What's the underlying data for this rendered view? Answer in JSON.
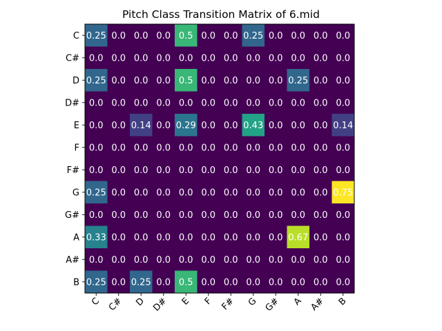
{
  "chart_data": {
    "type": "heatmap",
    "title": "Pitch Class Transition Matrix of 6.mid",
    "xlabel": "",
    "ylabel": "",
    "x_categories": [
      "C",
      "C#",
      "D",
      "D#",
      "E",
      "F",
      "F#",
      "G",
      "G#",
      "A",
      "A#",
      "B"
    ],
    "y_categories": [
      "C",
      "C#",
      "D",
      "D#",
      "E",
      "F",
      "F#",
      "G",
      "G#",
      "A",
      "A#",
      "B"
    ],
    "x_tick_rotation_deg": 45,
    "colormap": "viridis",
    "value_range": [
      0,
      0.75
    ],
    "grid": false,
    "values": [
      [
        0.25,
        0.0,
        0.0,
        0.0,
        0.5,
        0.0,
        0.0,
        0.25,
        0.0,
        0.0,
        0.0,
        0.0
      ],
      [
        0.0,
        0.0,
        0.0,
        0.0,
        0.0,
        0.0,
        0.0,
        0.0,
        0.0,
        0.0,
        0.0,
        0.0
      ],
      [
        0.25,
        0.0,
        0.0,
        0.0,
        0.5,
        0.0,
        0.0,
        0.0,
        0.0,
        0.25,
        0.0,
        0.0
      ],
      [
        0.0,
        0.0,
        0.0,
        0.0,
        0.0,
        0.0,
        0.0,
        0.0,
        0.0,
        0.0,
        0.0,
        0.0
      ],
      [
        0.0,
        0.0,
        0.14,
        0.0,
        0.29,
        0.0,
        0.0,
        0.43,
        0.0,
        0.0,
        0.0,
        0.14
      ],
      [
        0.0,
        0.0,
        0.0,
        0.0,
        0.0,
        0.0,
        0.0,
        0.0,
        0.0,
        0.0,
        0.0,
        0.0
      ],
      [
        0.0,
        0.0,
        0.0,
        0.0,
        0.0,
        0.0,
        0.0,
        0.0,
        0.0,
        0.0,
        0.0,
        0.0
      ],
      [
        0.25,
        0.0,
        0.0,
        0.0,
        0.0,
        0.0,
        0.0,
        0.0,
        0.0,
        0.0,
        0.0,
        0.75
      ],
      [
        0.0,
        0.0,
        0.0,
        0.0,
        0.0,
        0.0,
        0.0,
        0.0,
        0.0,
        0.0,
        0.0,
        0.0
      ],
      [
        0.33,
        0.0,
        0.0,
        0.0,
        0.0,
        0.0,
        0.0,
        0.0,
        0.0,
        0.67,
        0.0,
        0.0
      ],
      [
        0.0,
        0.0,
        0.0,
        0.0,
        0.0,
        0.0,
        0.0,
        0.0,
        0.0,
        0.0,
        0.0,
        0.0
      ],
      [
        0.25,
        0.0,
        0.25,
        0.0,
        0.5,
        0.0,
        0.0,
        0.0,
        0.0,
        0.0,
        0.0,
        0.0
      ]
    ],
    "labels": [
      [
        "0.25",
        "0.0",
        "0.0",
        "0.0",
        "0.5",
        "0.0",
        "0.0",
        "0.25",
        "0.0",
        "0.0",
        "0.0",
        "0.0"
      ],
      [
        "0.0",
        "0.0",
        "0.0",
        "0.0",
        "0.0",
        "0.0",
        "0.0",
        "0.0",
        "0.0",
        "0.0",
        "0.0",
        "0.0"
      ],
      [
        "0.25",
        "0.0",
        "0.0",
        "0.0",
        "0.5",
        "0.0",
        "0.0",
        "0.0",
        "0.0",
        "0.25",
        "0.0",
        "0.0"
      ],
      [
        "0.0",
        "0.0",
        "0.0",
        "0.0",
        "0.0",
        "0.0",
        "0.0",
        "0.0",
        "0.0",
        "0.0",
        "0.0",
        "0.0"
      ],
      [
        "0.0",
        "0.0",
        "0.14",
        "0.0",
        "0.29",
        "0.0",
        "0.0",
        "0.43",
        "0.0",
        "0.0",
        "0.0",
        "0.14"
      ],
      [
        "0.0",
        "0.0",
        "0.0",
        "0.0",
        "0.0",
        "0.0",
        "0.0",
        "0.0",
        "0.0",
        "0.0",
        "0.0",
        "0.0"
      ],
      [
        "0.0",
        "0.0",
        "0.0",
        "0.0",
        "0.0",
        "0.0",
        "0.0",
        "0.0",
        "0.0",
        "0.0",
        "0.0",
        "0.0"
      ],
      [
        "0.25",
        "0.0",
        "0.0",
        "0.0",
        "0.0",
        "0.0",
        "0.0",
        "0.0",
        "0.0",
        "0.0",
        "0.0",
        "0.75"
      ],
      [
        "0.0",
        "0.0",
        "0.0",
        "0.0",
        "0.0",
        "0.0",
        "0.0",
        "0.0",
        "0.0",
        "0.0",
        "0.0",
        "0.0"
      ],
      [
        "0.33",
        "0.0",
        "0.0",
        "0.0",
        "0.0",
        "0.0",
        "0.0",
        "0.0",
        "0.0",
        "0.67",
        "0.0",
        "0.0"
      ],
      [
        "0.0",
        "0.0",
        "0.0",
        "0.0",
        "0.0",
        "0.0",
        "0.0",
        "0.0",
        "0.0",
        "0.0",
        "0.0",
        "0.0"
      ],
      [
        "0.25",
        "0.0",
        "0.25",
        "0.0",
        "0.5",
        "0.0",
        "0.0",
        "0.0",
        "0.0",
        "0.0",
        "0.0",
        "0.0"
      ]
    ]
  }
}
